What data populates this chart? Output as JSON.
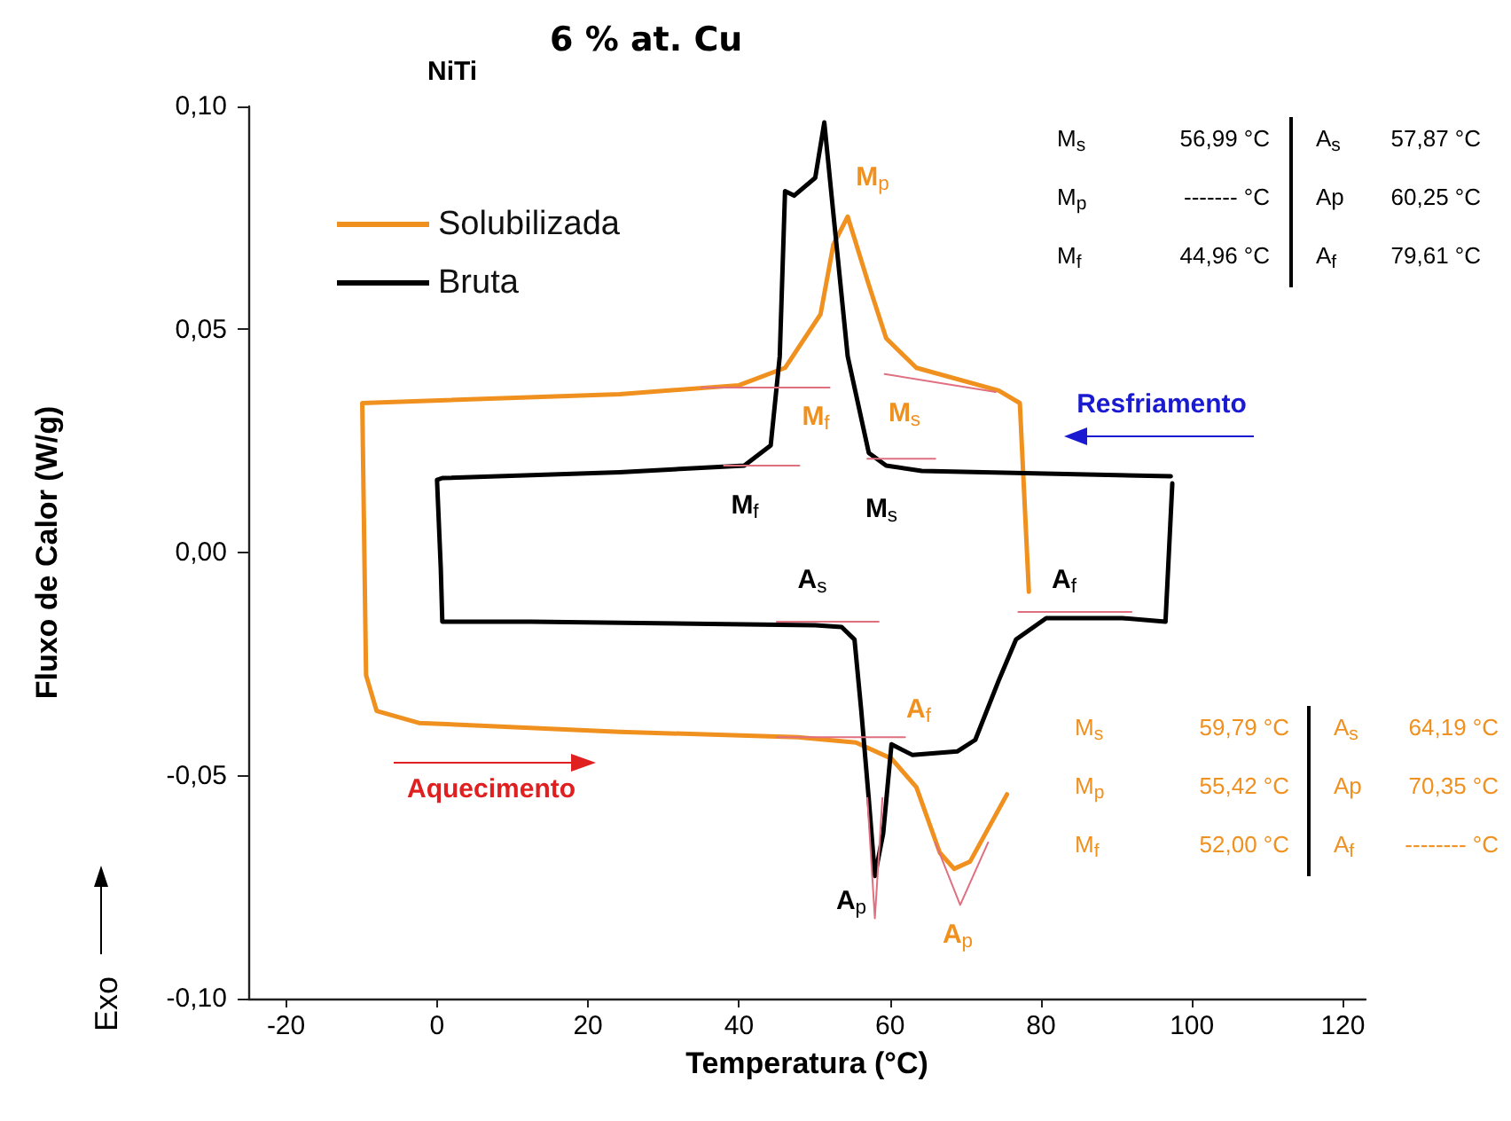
{
  "chart_data": {
    "type": "line",
    "title": "6 % at. Cu",
    "subtitle": "NiTi",
    "xlabel": "Temperatura (°C)",
    "ylabel": "Fluxo de Calor (W/g)",
    "xlim": [
      -25,
      123
    ],
    "xticks": [
      -20,
      0,
      20,
      40,
      60,
      80,
      100,
      120
    ],
    "ylim": [
      -0.1,
      0.1
    ],
    "yticks": [
      {
        "value": -0.1,
        "label": "-0,10"
      },
      {
        "value": -0.05,
        "label": "-0,05"
      },
      {
        "value": 0,
        "label": "0,00"
      },
      {
        "value": 0.05,
        "label": "0,05"
      },
      {
        "value": 0.1,
        "label": "0,10"
      }
    ],
    "grid": false,
    "legend": "top left",
    "marker": "none",
    "line_style": "solid",
    "series": [
      {
        "name": "Solubilizada",
        "color": "#f0901e",
        "x": [
          78.4,
          77.2,
          74.4,
          63.5,
          59.5,
          57.2,
          54.4,
          52.5,
          50.8,
          46.1,
          40,
          24.2,
          -9.9,
          -9.4,
          -8,
          -2.4,
          24.2,
          47.8,
          55.5,
          60.2,
          63.5,
          66.6,
          68.5,
          70.6,
          75.5
        ],
        "values": [
          -0.0088,
          0.0335,
          0.0363,
          0.0414,
          0.048,
          0.06,
          0.0753,
          0.069,
          0.0534,
          0.0414,
          0.0375,
          0.0355,
          0.0335,
          -0.0275,
          -0.0355,
          -0.0382,
          -0.0402,
          -0.0414,
          -0.0426,
          -0.0462,
          -0.0526,
          -0.0673,
          -0.0709,
          -0.0693,
          -0.0542
        ]
      },
      {
        "name": "Bruta",
        "color": "#000000",
        "x": [
          97.2,
          64.2,
          59.5,
          57.2,
          54.4,
          52.5,
          51.3,
          50.1,
          47.3,
          46.1,
          45.4,
          44.2,
          40.7,
          24.2,
          0.7,
          0,
          0.5,
          0.7,
          12.5,
          36,
          50.1,
          53.6,
          55.3,
          56.2,
          57.2,
          58,
          59.1,
          60.2,
          63,
          68.9,
          71.3,
          74.4,
          76.7,
          80.7,
          90.8,
          96.5,
          97.4
        ],
        "values": [
          0.0171,
          0.0183,
          0.0195,
          0.0223,
          0.044,
          0.076,
          0.0964,
          0.084,
          0.08,
          0.081,
          0.044,
          0.024,
          0.0195,
          0.018,
          0.0167,
          0.0163,
          -0.0036,
          -0.0155,
          -0.0155,
          -0.016,
          -0.0163,
          -0.0167,
          -0.0195,
          -0.0355,
          -0.0554,
          -0.0725,
          -0.063,
          -0.043,
          -0.0454,
          -0.0446,
          -0.042,
          -0.0287,
          -0.0195,
          -0.0147,
          -0.0147,
          -0.0155,
          0.0155
        ]
      },
      {
        "color": "#e07080",
        "x": [
          38,
          48
        ],
        "values": [
          0.0195,
          0.0195
        ]
      },
      {
        "color": "#e07080",
        "x": [
          57,
          66
        ],
        "values": [
          0.021,
          0.021
        ]
      },
      {
        "color": "#e07080",
        "x": [
          35,
          52
        ],
        "values": [
          0.037,
          0.037
        ]
      },
      {
        "color": "#e07080",
        "x": [
          59.3,
          74
        ],
        "values": [
          0.04,
          0.036
        ]
      },
      {
        "color": "#e07080",
        "x": [
          45,
          58.5
        ],
        "values": [
          -0.0155,
          -0.0155
        ]
      },
      {
        "color": "#e07080",
        "x": [
          45,
          62
        ],
        "values": [
          -0.0414,
          -0.0414
        ]
      },
      {
        "color": "#e07080",
        "x": [
          77,
          92
        ],
        "values": [
          -0.0133,
          -0.0133
        ]
      },
      {
        "color": "#e07080",
        "x": [
          57,
          58,
          59
        ],
        "values": [
          -0.055,
          -0.082,
          -0.055
        ]
      },
      {
        "color": "#e07080",
        "x": [
          66,
          69.3,
          73
        ],
        "values": [
          -0.065,
          -0.079,
          -0.065
        ]
      }
    ],
    "annotations": [
      "M$_{f}$",
      "M$_{s}$",
      "A$_{s}$",
      "A$_{f}$",
      "A$_{p}$",
      "M$_{p}$",
      "M$_{f}$",
      "M$_{s}$",
      "A$_{f}$",
      "A$_{p}$",
      "M$_{s}$",
      "56,99 °C",
      "M$_{p}$",
      "------- °C",
      "M$_{f}$",
      "44,96 °C",
      "A$_{s}$",
      "57,87 °C",
      "Ap",
      "60,25 °C",
      "A$_{f}$",
      "79,61 °C",
      "M$_{s}$",
      "59,79 °C",
      "M$_{p}$",
      "55,42 °C",
      "M$_{f}$",
      "52,00 °C",
      "A$_{s}$",
      "64,19 °C",
      "Ap",
      "70,35 °C",
      "A$_{f}$",
      "-------- °C",
      "Resfriamento",
      "Aquecimento",
      "Exo"
    ]
  }
}
